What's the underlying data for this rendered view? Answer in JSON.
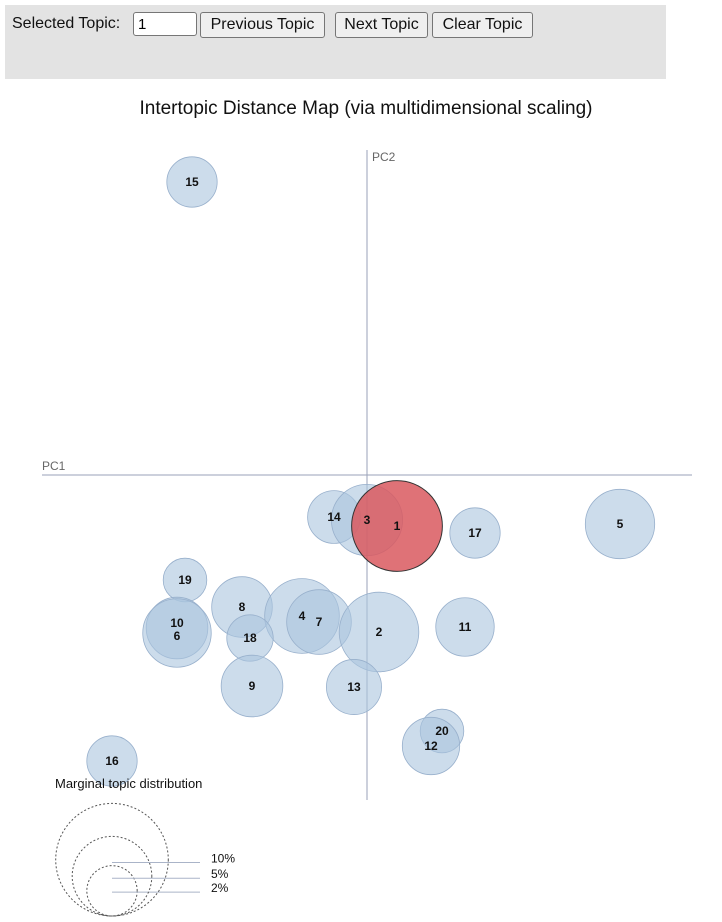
{
  "controls": {
    "selected_topic_label": "Selected Topic:",
    "selected_topic_value": "1",
    "prev_label": "Previous Topic",
    "next_label": "Next Topic",
    "clear_label": "Clear Topic"
  },
  "chart_data": {
    "type": "scatter",
    "title": "Intertopic Distance Map (via multidimensional scaling)",
    "xlabel": "PC1",
    "ylabel": "PC2",
    "selected_topic": "1",
    "colors": {
      "default": "#aac4de",
      "selected": "#d9595f",
      "axis": "#9aa2b8"
    },
    "topics": [
      {
        "label": "15",
        "pc1": -0.175,
        "pc2": 0.293,
        "size": 2.0
      },
      {
        "label": "14",
        "pc1": -0.033,
        "pc2": -0.042,
        "size": 2.2
      },
      {
        "label": "3",
        "pc1": 0.0,
        "pc2": -0.045,
        "size": 4.0
      },
      {
        "label": "1",
        "pc1": 0.03,
        "pc2": -0.051,
        "size": 6.5
      },
      {
        "label": "17",
        "pc1": 0.108,
        "pc2": -0.058,
        "size": 2.0
      },
      {
        "label": "5",
        "pc1": 0.253,
        "pc2": -0.049,
        "size": 3.8
      },
      {
        "label": "19",
        "pc1": -0.182,
        "pc2": -0.105,
        "size": 1.5
      },
      {
        "label": "8",
        "pc1": -0.125,
        "pc2": -0.132,
        "size": 2.9
      },
      {
        "label": "4",
        "pc1": -0.065,
        "pc2": -0.141,
        "size": 4.4
      },
      {
        "label": "7",
        "pc1": -0.048,
        "pc2": -0.147,
        "size": 3.3
      },
      {
        "label": "2",
        "pc1": 0.012,
        "pc2": -0.157,
        "size": 5.0
      },
      {
        "label": "11",
        "pc1": 0.098,
        "pc2": -0.152,
        "size": 2.7
      },
      {
        "label": "10",
        "pc1": -0.19,
        "pc2": -0.153,
        "size": 3.0
      },
      {
        "label": "6",
        "pc1": -0.19,
        "pc2": -0.158,
        "size": 3.7
      },
      {
        "label": "18",
        "pc1": -0.117,
        "pc2": -0.163,
        "size": 1.7
      },
      {
        "label": "9",
        "pc1": -0.115,
        "pc2": -0.211,
        "size": 3.0
      },
      {
        "label": "13",
        "pc1": -0.013,
        "pc2": -0.212,
        "size": 2.4
      },
      {
        "label": "20",
        "pc1": 0.075,
        "pc2": -0.256,
        "size": 1.5
      },
      {
        "label": "12",
        "pc1": 0.064,
        "pc2": -0.271,
        "size": 2.6
      },
      {
        "label": "16",
        "pc1": -0.255,
        "pc2": -0.286,
        "size": 2.0
      }
    ],
    "legend": {
      "title": "Marginal topic distribution",
      "entries": [
        {
          "label": "2%",
          "value": 2
        },
        {
          "label": "5%",
          "value": 5
        },
        {
          "label": "10%",
          "value": 10
        }
      ]
    }
  }
}
